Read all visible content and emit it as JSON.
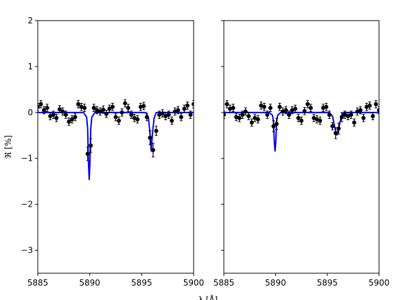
{
  "chart_data": [
    {
      "type": "errorbar",
      "ylabel": "ℜ [%]",
      "xlabel": "λ [Å]",
      "xlim": [
        5885,
        5900
      ],
      "ylim": [
        -3.5,
        2
      ],
      "xticks": [
        5885,
        5890,
        5895,
        5900
      ],
      "yticks": [
        2,
        1,
        {
          "value": 0,
          "label": "0"
        },
        {
          "value": -1,
          "label": "−1"
        },
        {
          "value": -2,
          "label": "−2"
        },
        {
          "value": -3,
          "label": "−3"
        }
      ],
      "points": {
        "color": "#000000",
        "x": [
          5885.0,
          5885.3,
          5885.6,
          5885.9,
          5886.2,
          5886.5,
          5886.8,
          5887.1,
          5887.4,
          5887.7,
          5888.0,
          5888.3,
          5888.6,
          5888.9,
          5889.2,
          5889.5,
          5889.8,
          5890.1,
          5890.4,
          5890.7,
          5891.0,
          5891.3,
          5891.6,
          5891.9,
          5892.2,
          5892.5,
          5892.8,
          5893.1,
          5893.4,
          5893.7,
          5894.0,
          5894.3,
          5894.6,
          5894.9,
          5895.2,
          5895.5,
          5895.8,
          5896.1,
          5896.4,
          5896.7,
          5897.0,
          5897.3,
          5897.6,
          5897.9,
          5898.2,
          5898.5,
          5898.8,
          5899.1,
          5899.4,
          5899.7,
          5900.0
        ],
        "values": [
          0.12,
          0.18,
          0.05,
          0.1,
          -0.08,
          -0.05,
          -0.12,
          0.07,
          0.02,
          -0.05,
          -0.2,
          -0.15,
          -0.1,
          0.18,
          0.12,
          0.1,
          -0.9,
          -0.72,
          0.1,
          0.05,
          0.02,
          0.06,
          -0.03,
          0.08,
          0.12,
          -0.1,
          -0.18,
          0.0,
          0.2,
          0.1,
          -0.05,
          -0.12,
          -0.15,
          0.12,
          0.14,
          -0.1,
          -0.55,
          -0.82,
          -0.4,
          -0.05,
          -0.02,
          -0.08,
          -0.05,
          -0.18,
          0.02,
          0.05,
          -0.1,
          0.08,
          0.15,
          -0.05,
          0.18
        ],
        "errors": [
          0.08,
          0.08,
          0.08,
          0.08,
          0.08,
          0.08,
          0.08,
          0.08,
          0.08,
          0.08,
          0.08,
          0.08,
          0.08,
          0.08,
          0.08,
          0.08,
          0.15,
          0.15,
          0.08,
          0.08,
          0.08,
          0.08,
          0.08,
          0.08,
          0.08,
          0.08,
          0.08,
          0.08,
          0.08,
          0.08,
          0.08,
          0.08,
          0.08,
          0.08,
          0.08,
          0.08,
          0.15,
          0.15,
          0.1,
          0.08,
          0.08,
          0.08,
          0.08,
          0.08,
          0.08,
          0.08,
          0.08,
          0.08,
          0.08,
          0.08,
          0.08
        ]
      },
      "model": {
        "color": "#0000ff",
        "x": [
          5885,
          5889.4,
          5889.7,
          5889.8,
          5889.88,
          5889.95,
          5890.02,
          5890.1,
          5890.2,
          5890.5,
          5895.4,
          5895.65,
          5895.8,
          5895.92,
          5896.04,
          5896.2,
          5896.4,
          5900
        ],
        "values": [
          0,
          0,
          -0.1,
          -0.35,
          -1.1,
          -1.47,
          -1.1,
          -0.35,
          -0.1,
          0,
          0,
          -0.12,
          -0.45,
          -0.85,
          -0.45,
          -0.12,
          0,
          0
        ]
      }
    },
    {
      "type": "errorbar",
      "xlim": [
        5885,
        5900
      ],
      "ylim": [
        -3.5,
        2
      ],
      "xticks": [
        5885,
        5890,
        5895,
        5900
      ],
      "yticks": [
        2,
        1,
        0,
        -1,
        -2,
        -3
      ],
      "points": {
        "color": "#000000",
        "x": [
          5885.0,
          5885.3,
          5885.6,
          5885.9,
          5886.2,
          5886.5,
          5886.8,
          5887.1,
          5887.4,
          5887.7,
          5888.0,
          5888.3,
          5888.6,
          5888.9,
          5889.2,
          5889.5,
          5889.8,
          5890.1,
          5890.4,
          5890.7,
          5891.0,
          5891.3,
          5891.6,
          5891.9,
          5892.2,
          5892.5,
          5892.8,
          5893.1,
          5893.4,
          5893.7,
          5894.0,
          5894.3,
          5894.6,
          5894.9,
          5895.2,
          5895.5,
          5895.8,
          5896.1,
          5896.4,
          5896.7,
          5897.0,
          5897.3,
          5897.6,
          5897.9,
          5898.2,
          5898.5,
          5898.8,
          5899.1,
          5899.4,
          5899.7,
          5900.0
        ],
        "values": [
          -0.05,
          0.18,
          0.08,
          0.1,
          -0.1,
          -0.12,
          -0.05,
          0.02,
          -0.08,
          -0.22,
          -0.12,
          -0.15,
          0.15,
          0.12,
          -0.05,
          0.1,
          -0.3,
          -0.25,
          0.12,
          0.02,
          0.05,
          -0.05,
          0.05,
          0.08,
          -0.12,
          -0.18,
          0.03,
          0.18,
          0.1,
          -0.12,
          -0.15,
          -0.18,
          0.1,
          0.12,
          -0.05,
          -0.3,
          -0.45,
          -0.35,
          -0.1,
          -0.05,
          -0.08,
          -0.05,
          -0.22,
          0.02,
          0.05,
          -0.12,
          0.12,
          0.15,
          -0.08,
          0.18,
          0.05
        ],
        "errors": [
          0.08,
          0.08,
          0.08,
          0.08,
          0.08,
          0.08,
          0.08,
          0.08,
          0.08,
          0.08,
          0.08,
          0.08,
          0.08,
          0.08,
          0.08,
          0.08,
          0.12,
          0.12,
          0.08,
          0.08,
          0.08,
          0.08,
          0.08,
          0.08,
          0.08,
          0.08,
          0.08,
          0.08,
          0.08,
          0.08,
          0.08,
          0.08,
          0.08,
          0.08,
          0.08,
          0.08,
          0.12,
          0.12,
          0.1,
          0.08,
          0.08,
          0.08,
          0.08,
          0.08,
          0.08,
          0.08,
          0.08,
          0.08,
          0.08,
          0.08,
          0.08
        ]
      },
      "model": {
        "color": "#0000ff",
        "x": [
          5885,
          5889.4,
          5889.7,
          5889.8,
          5889.88,
          5889.95,
          5890.02,
          5890.1,
          5890.2,
          5890.5,
          5895.2,
          5895.5,
          5895.7,
          5895.92,
          5896.15,
          5896.35,
          5896.6,
          5900
        ],
        "values": [
          0,
          0,
          -0.06,
          -0.2,
          -0.65,
          -0.85,
          -0.65,
          -0.2,
          -0.06,
          0,
          0,
          -0.08,
          -0.3,
          -0.5,
          -0.3,
          -0.08,
          0,
          0
        ]
      }
    }
  ]
}
